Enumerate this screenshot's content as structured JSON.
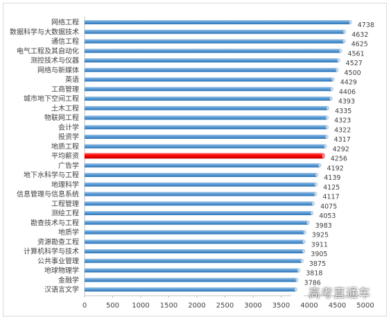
{
  "chart_data": {
    "type": "bar",
    "orientation": "horizontal",
    "categories": [
      "网络工程",
      "数据科学与大数据技术",
      "通信工程",
      "电气工程及其自动化",
      "测控技术与仪器",
      "网络与新媒体",
      "英语",
      "工商管理",
      "城市地下空间工程",
      "土木工程",
      "物联网工程",
      "会计学",
      "投资学",
      "地质工程",
      "平均薪资",
      "广告学",
      "地下水科学与工程",
      "地理科学",
      "信息管理与信息系统",
      "工程管理",
      "测绘工程",
      "勘查技术与工程",
      "地质学",
      "资源勘查工程",
      "计算机科学与技术",
      "公共事业管理",
      "地球物理学",
      "金融学",
      "汉语言文学"
    ],
    "values": [
      4738,
      4632,
      4625,
      4561,
      4527,
      4500,
      4429,
      4406,
      4393,
      4335,
      4323,
      4322,
      4317,
      4292,
      4256,
      4192,
      4139,
      4125,
      4117,
      4075,
      4053,
      3983,
      3925,
      3911,
      3905,
      3875,
      3818,
      3786,
      3766
    ],
    "value_labels": [
      "4738",
      "4632",
      "4625",
      "4561",
      "4527",
      "4500",
      "4429",
      "4406",
      "4393",
      "4335",
      "4323",
      "4322",
      "4317",
      "4292",
      "4256",
      "4192",
      "4139",
      "4125",
      "4117",
      "4075",
      "4053",
      "3983",
      "3925",
      "3911",
      "3905",
      "3875",
      "3818",
      "3786",
      ""
    ],
    "highlight_category": "平均薪资",
    "xlim": [
      0,
      5000
    ],
    "xticks": [
      0,
      500,
      1000,
      1500,
      2000,
      2500,
      3000,
      3500,
      4000,
      4500,
      5000
    ],
    "title": "",
    "xlabel": "",
    "ylabel": "",
    "grid": false,
    "legend": "none",
    "colors": {
      "bar": "#5b9bd5",
      "bar_dark": "#2e75b6",
      "highlight": "#ff0000",
      "highlight_dark": "#c00000"
    }
  },
  "watermark": {
    "text": "高考直通车"
  }
}
